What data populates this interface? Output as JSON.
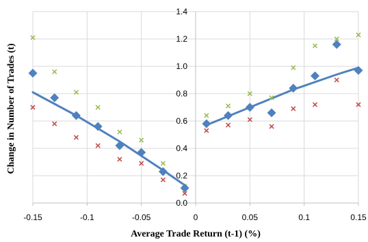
{
  "chart_data": {
    "type": "scatter",
    "xlabel": "Average Trade Return (t-1) (%)",
    "ylabel": "Change in Number of Trades (t)",
    "xlim": [
      -0.15,
      0.15
    ],
    "ylim": [
      0,
      1.4
    ],
    "x_ticks": [
      -0.15,
      -0.1,
      -0.05,
      0,
      0.05,
      0.1,
      0.15
    ],
    "x_tick_labels": [
      "-0.15",
      "-0.1",
      "-0.05",
      "0",
      "0.05",
      "0.1",
      "0.15"
    ],
    "y_ticks": [
      0,
      0.2,
      0.4,
      0.6,
      0.8,
      1.0,
      1.2,
      1.4
    ],
    "y_tick_labels": [
      "0.0",
      "0.2",
      "0.4",
      "0.6",
      "0.8",
      "1.0",
      "1.2",
      "1.4"
    ],
    "grid": true,
    "legend": "none",
    "colors": {
      "diamond": "#4f81bd",
      "trend": "#4f81bd",
      "green_cross": "#9bbb59",
      "red_cross": "#c0504d",
      "grid": "#d9d9d9",
      "axis": "#bfbfbf"
    },
    "series": [
      {
        "marker": "diamond",
        "x": [
          -0.15,
          -0.13,
          -0.11,
          -0.09,
          -0.07,
          -0.05,
          -0.03,
          -0.01,
          0.01,
          0.03,
          0.05,
          0.07,
          0.09,
          0.11,
          0.13,
          0.15
        ],
        "y": [
          0.95,
          0.77,
          0.64,
          0.56,
          0.42,
          0.37,
          0.23,
          0.11,
          0.58,
          0.64,
          0.7,
          0.66,
          0.84,
          0.93,
          1.16,
          0.97
        ]
      },
      {
        "marker": "x-green",
        "x": [
          -0.15,
          -0.13,
          -0.11,
          -0.09,
          -0.07,
          -0.05,
          -0.03,
          -0.01,
          0.01,
          0.03,
          0.05,
          0.07,
          0.09,
          0.11,
          0.13,
          0.15
        ],
        "y": [
          1.21,
          0.96,
          0.81,
          0.7,
          0.52,
          0.46,
          0.29,
          0.12,
          0.64,
          0.71,
          0.8,
          0.77,
          0.99,
          1.15,
          1.2,
          1.23
        ]
      },
      {
        "marker": "x-red",
        "x": [
          -0.15,
          -0.13,
          -0.11,
          -0.09,
          -0.07,
          -0.05,
          -0.03,
          -0.01,
          0.01,
          0.03,
          0.05,
          0.07,
          0.09,
          0.11,
          0.13,
          0.15
        ],
        "y": [
          0.7,
          0.58,
          0.48,
          0.42,
          0.32,
          0.29,
          0.17,
          0.07,
          0.53,
          0.57,
          0.61,
          0.56,
          0.69,
          0.72,
          0.9,
          0.72
        ]
      }
    ],
    "trendlines": [
      {
        "side": "negative",
        "x": [
          -0.15,
          -0.11,
          -0.07,
          -0.03,
          -0.01
        ],
        "y": [
          0.81,
          0.64,
          0.45,
          0.24,
          0.13
        ]
      },
      {
        "side": "positive",
        "x": [
          0.01,
          0.05,
          0.09,
          0.13,
          0.15
        ],
        "y": [
          0.57,
          0.7,
          0.83,
          0.94,
          0.99
        ]
      }
    ]
  }
}
